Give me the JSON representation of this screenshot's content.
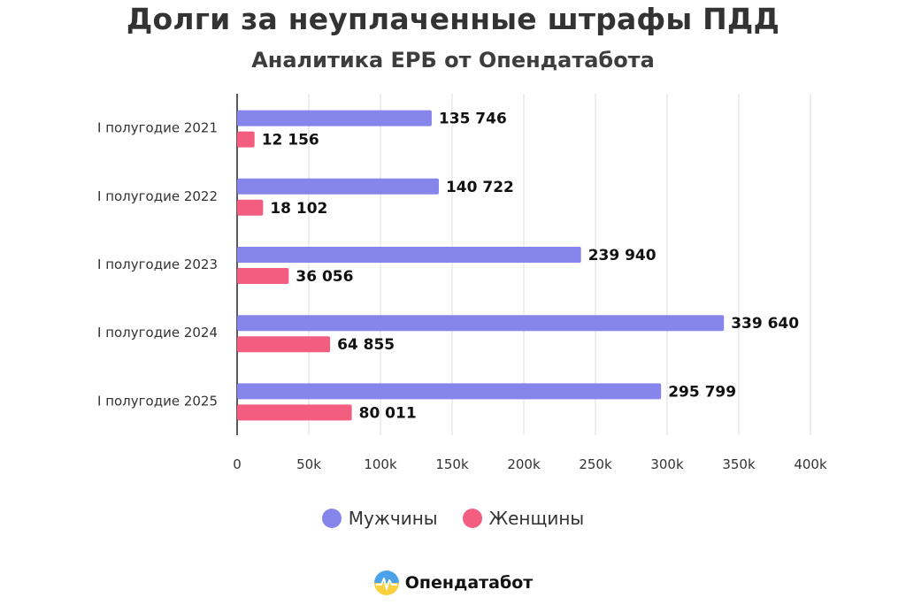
{
  "header": {
    "title": "Долги за неуплаченные штрафы ПДД",
    "subtitle": "Аналитика ЕРБ от Опендатабота"
  },
  "colors": {
    "men": "#8585ec",
    "women": "#f25d80",
    "axis": "#222222",
    "grid": "#dddddd"
  },
  "chart_data": {
    "type": "bar",
    "orientation": "horizontal",
    "title": "Долги за неуплаченные штрафы ПДД",
    "subtitle": "Аналитика ЕРБ от Опендатабота",
    "categories": [
      "I полугодие 2021",
      "I полугодие 2022",
      "I полугодие 2023",
      "I полугодие 2024",
      "I полугодие 2025"
    ],
    "series": [
      {
        "name": "Мужчины",
        "values": [
          135746,
          140722,
          239940,
          339640,
          295799
        ],
        "labels": [
          "135 746",
          "140 722",
          "239 940",
          "339 640",
          "295 799"
        ]
      },
      {
        "name": "Женщины",
        "values": [
          12156,
          18102,
          36056,
          64855,
          80011
        ],
        "labels": [
          "12 156",
          "18 102",
          "36 056",
          "64 855",
          "80 011"
        ]
      }
    ],
    "xlim": [
      0,
      400000
    ],
    "xticks": [
      0,
      50000,
      100000,
      150000,
      200000,
      250000,
      300000,
      350000,
      400000
    ],
    "xtick_labels": [
      "0",
      "50k",
      "100k",
      "150k",
      "200k",
      "250k",
      "300k",
      "350k",
      "400k"
    ],
    "grid": true,
    "legend": "bottom-center"
  },
  "legend": {
    "items": [
      {
        "label": "Мужчины"
      },
      {
        "label": "Женщины"
      }
    ]
  },
  "brand": {
    "name": "Опендатабот",
    "icon": "opendatabot-logo-icon"
  }
}
